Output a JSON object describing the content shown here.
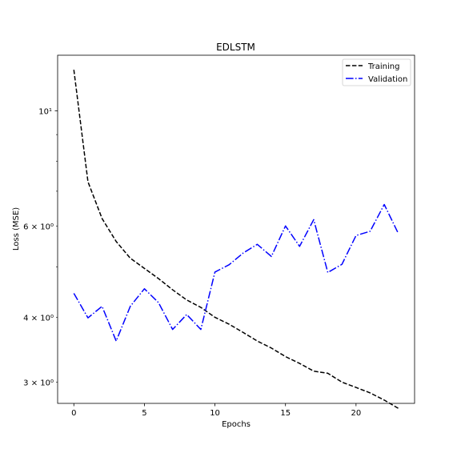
{
  "chart_data": {
    "type": "line",
    "title": "EDLSTM",
    "xlabel": "Epochs",
    "ylabel": "Loss (MSE)",
    "yscale": "log",
    "xlim": [
      -1.15,
      24.15
    ],
    "ylim": [
      2.73,
      12.8
    ],
    "x_ticks": [
      0,
      5,
      10,
      15,
      20
    ],
    "x_tick_labels": [
      "0",
      "5",
      "10",
      "15",
      "20"
    ],
    "y_major_ticks": [
      10
    ],
    "y_major_tick_labels": [
      "10¹"
    ],
    "y_minor_ticks": [
      3,
      4,
      6
    ],
    "y_minor_tick_labels": [
      "3 × 10⁰",
      "4 × 10⁰",
      "6 × 10⁰"
    ],
    "y_minor_unlabeled": [
      5,
      7,
      8,
      9
    ],
    "legend_position": "top-right",
    "x": [
      0,
      1,
      2,
      3,
      4,
      5,
      6,
      7,
      8,
      9,
      10,
      11,
      12,
      13,
      14,
      15,
      16,
      17,
      18,
      19,
      20,
      21,
      22,
      23
    ],
    "series": [
      {
        "name": "Training",
        "color": "#000000",
        "linestyle": "dashed",
        "values": [
          12.0,
          7.3,
          6.2,
          5.6,
          5.2,
          4.97,
          4.75,
          4.52,
          4.32,
          4.18,
          4.0,
          3.88,
          3.74,
          3.6,
          3.49,
          3.36,
          3.26,
          3.15,
          3.12,
          3.0,
          2.93,
          2.86,
          2.77,
          2.67
        ]
      },
      {
        "name": "Validation",
        "color": "#0000ff",
        "linestyle": "dashdot",
        "values": [
          4.45,
          3.99,
          4.2,
          3.6,
          4.2,
          4.54,
          4.27,
          3.79,
          4.05,
          3.79,
          4.89,
          5.05,
          5.32,
          5.53,
          5.24,
          6.0,
          5.48,
          6.17,
          4.88,
          5.06,
          5.75,
          5.86,
          6.6,
          5.8
        ]
      }
    ]
  }
}
